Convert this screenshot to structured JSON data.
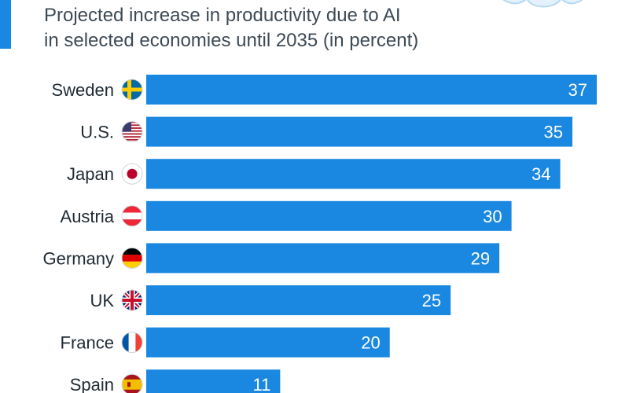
{
  "header": {
    "subtitle_line1": "Projected increase in productivity due to AI",
    "subtitle_line2": "in selected economies until 2035 (in percent)"
  },
  "chart_data": {
    "type": "bar",
    "orientation": "horizontal",
    "categories": [
      "Sweden",
      "U.S.",
      "Japan",
      "Austria",
      "Germany",
      "UK",
      "France",
      "Spain"
    ],
    "values": [
      37,
      35,
      34,
      30,
      29,
      25,
      20,
      11
    ],
    "flags": [
      "sweden-flag-icon",
      "us-flag-icon",
      "japan-flag-icon",
      "austria-flag-icon",
      "germany-flag-icon",
      "uk-flag-icon",
      "france-flag-icon",
      "spain-flag-icon"
    ],
    "title": "",
    "xlabel": "",
    "ylabel": "",
    "xlim": [
      0,
      37
    ],
    "grid": false,
    "legend": "none",
    "bar_color": "#1a88e0",
    "label_color": "#ffffff"
  }
}
